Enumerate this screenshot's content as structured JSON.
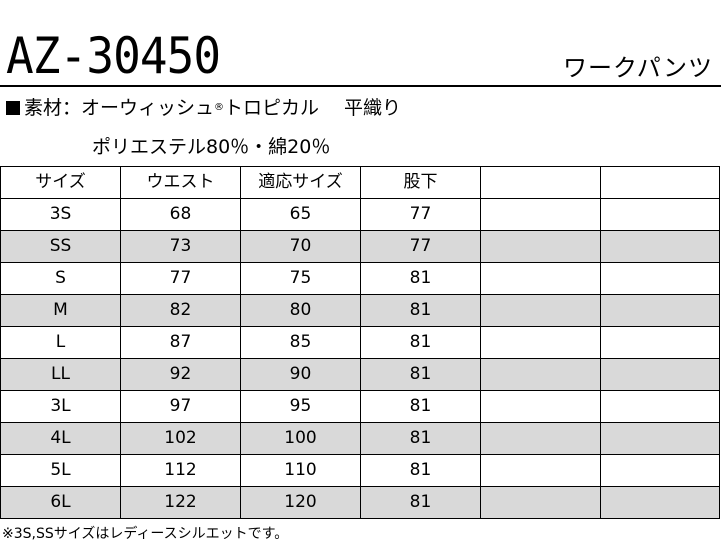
{
  "header": {
    "product_code": "AZ-30450",
    "category": "ワークパンツ"
  },
  "material": {
    "label": "素材：オーウィッシュ",
    "registered_mark": "®",
    "fabric": "トロピカル　 平織り",
    "composition": "ポリエステル80％・綿20％"
  },
  "size_table": {
    "headers": [
      "サイズ",
      "ウエスト",
      "適応サイズ",
      "股下",
      "",
      ""
    ],
    "rows": [
      {
        "size": "3S",
        "waist": "68",
        "fit": "65",
        "inseam": "77",
        "shaded": false
      },
      {
        "size": "SS",
        "waist": "73",
        "fit": "70",
        "inseam": "77",
        "shaded": true
      },
      {
        "size": "S",
        "waist": "77",
        "fit": "75",
        "inseam": "81",
        "shaded": false
      },
      {
        "size": "M",
        "waist": "82",
        "fit": "80",
        "inseam": "81",
        "shaded": true
      },
      {
        "size": "L",
        "waist": "87",
        "fit": "85",
        "inseam": "81",
        "shaded": false
      },
      {
        "size": "LL",
        "waist": "92",
        "fit": "90",
        "inseam": "81",
        "shaded": true
      },
      {
        "size": "3L",
        "waist": "97",
        "fit": "95",
        "inseam": "81",
        "shaded": false
      },
      {
        "size": "4L",
        "waist": "102",
        "fit": "100",
        "inseam": "81",
        "shaded": true
      },
      {
        "size": "5L",
        "waist": "112",
        "fit": "110",
        "inseam": "81",
        "shaded": false
      },
      {
        "size": "6L",
        "waist": "122",
        "fit": "120",
        "inseam": "81",
        "shaded": true
      }
    ]
  },
  "footnote": "※3S,SSサイズはレディースシルエットです。",
  "colors": {
    "shaded_row": "#d9d9d9",
    "text": "#000000",
    "background": "#ffffff"
  }
}
